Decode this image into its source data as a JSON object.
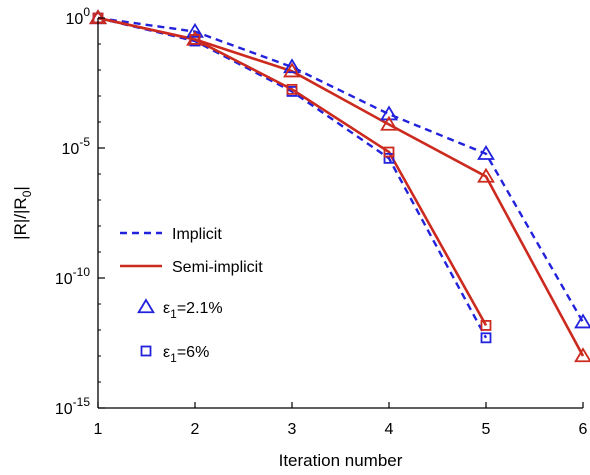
{
  "chart_data": {
    "type": "line",
    "title": "",
    "xlabel": "Iteration number",
    "ylabel": "|R|/|R0|",
    "yscale": "log",
    "xlim": [
      1,
      6
    ],
    "ylim": [
      1e-15,
      1
    ],
    "x_ticks": [
      "1",
      "2",
      "3",
      "4",
      "5",
      "6"
    ],
    "y_ticks": [
      {
        "value": 1,
        "label": "10^0",
        "base": "10",
        "exp": "0"
      },
      {
        "value": 1e-05,
        "label": "10^-5",
        "base": "10",
        "exp": "-5"
      },
      {
        "value": 1e-10,
        "label": "10^-10",
        "base": "10",
        "exp": "-10"
      },
      {
        "value": 1e-15,
        "label": "10^-15",
        "base": "10",
        "exp": "-15"
      }
    ],
    "ylabel_parts": {
      "main": "|R|/|R",
      "sub": "0",
      "end": "|"
    },
    "grid": false,
    "legend": {
      "placement": "left-middle",
      "line_entries": [
        {
          "label": "Implicit",
          "style": "dashed",
          "color": "#2222dd"
        },
        {
          "label": "Semi-implicit",
          "style": "solid",
          "color": "#cc2a1e"
        }
      ],
      "marker_entries": [
        {
          "label": "ε1=2.1%",
          "symbol": "ε",
          "sub": "1",
          "rest": "=2.1%",
          "marker": "triangle"
        },
        {
          "label": "ε1=6%",
          "symbol": "ε",
          "sub": "1",
          "rest": "=6%",
          "marker": "square"
        }
      ]
    },
    "series": [
      {
        "name": "Implicit, ε1=2.1%",
        "method": "Implicit",
        "marker": "triangle",
        "color": "#2222dd",
        "style": "dashed",
        "x": [
          1,
          2,
          3,
          4,
          5,
          6
        ],
        "y": [
          1,
          0.3,
          0.013,
          0.0002,
          6e-06,
          2e-12
        ]
      },
      {
        "name": "Semi-implicit, ε1=2.1%",
        "method": "Semi-implicit",
        "marker": "triangle",
        "color": "#cc2a1e",
        "style": "solid",
        "x": [
          1,
          2,
          3,
          4,
          5,
          6
        ],
        "y": [
          1,
          0.15,
          0.009,
          8e-05,
          8e-07,
          1e-13
        ]
      },
      {
        "name": "Implicit, ε1=6%",
        "method": "Implicit",
        "marker": "square",
        "color": "#2222dd",
        "style": "dashed",
        "x": [
          1,
          2,
          3,
          4,
          5
        ],
        "y": [
          1,
          0.13,
          0.0015,
          4e-06,
          5e-13
        ]
      },
      {
        "name": "Semi-implicit, ε1=6%",
        "method": "Semi-implicit",
        "marker": "square",
        "color": "#cc2a1e",
        "style": "solid",
        "x": [
          1,
          2,
          3,
          4,
          5
        ],
        "y": [
          1,
          0.15,
          0.0018,
          7e-06,
          1.5e-12
        ]
      }
    ]
  }
}
